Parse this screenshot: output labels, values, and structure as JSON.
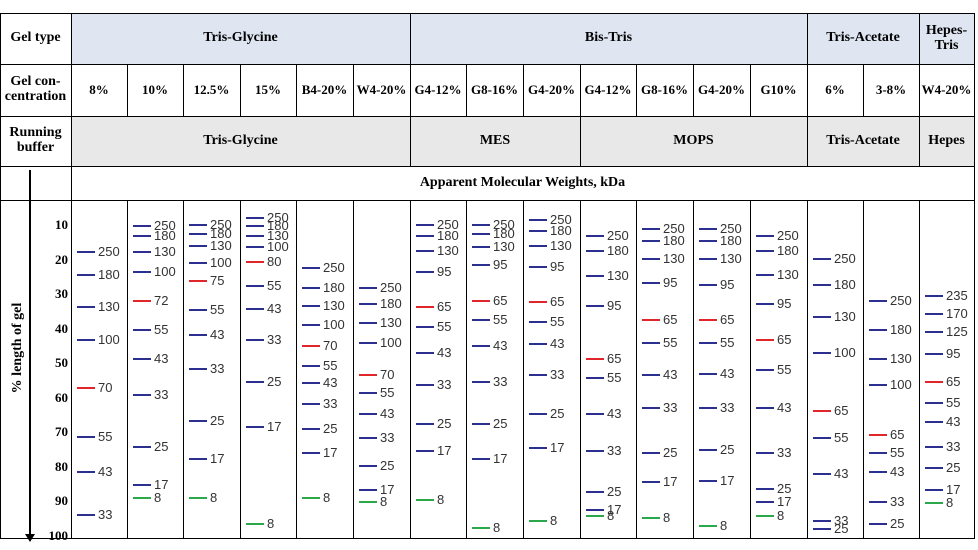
{
  "header": {
    "gel_type_label": "Gel type",
    "gel_concentration_label": "Gel con-\ncentration",
    "running_buffer_label": "Running\nbuffer",
    "y_axis_label": "% length of gel",
    "apparent_mw_label": "Apparent Molecular Weights, kDa"
  },
  "gel_types": [
    "Tris-Glycine",
    "Bis-Tris",
    "Tris-Acetate",
    "Hepes-\nTris"
  ],
  "buffers": [
    "Tris-Glycine",
    "MES",
    "MOPS",
    "Tris-Acetate",
    "Hepes"
  ],
  "y_ticks": [
    "10",
    "20",
    "30",
    "40",
    "50",
    "60",
    "70",
    "80",
    "90",
    "100"
  ],
  "colors": {
    "blue": "#2b2f8f",
    "red": "#e0252b",
    "green": "#2aa84a",
    "header_blue": "#dfe6f2",
    "header_gray": "#e8e8e8"
  },
  "lanes": [
    {
      "concentration": "8%",
      "bands": [
        {
          "v": "250",
          "y": 13,
          "c": "blue"
        },
        {
          "v": "180",
          "y": 20,
          "c": "blue"
        },
        {
          "v": "130",
          "y": 30,
          "c": "blue"
        },
        {
          "v": "100",
          "y": 40,
          "c": "blue"
        },
        {
          "v": "70",
          "y": 55,
          "c": "red"
        },
        {
          "v": "55",
          "y": 70,
          "c": "blue"
        },
        {
          "v": "43",
          "y": 81,
          "c": "blue"
        },
        {
          "v": "33",
          "y": 94,
          "c": "blue"
        }
      ]
    },
    {
      "concentration": "10%",
      "bands": [
        {
          "v": "250",
          "y": 5,
          "c": "blue"
        },
        {
          "v": "180",
          "y": 8,
          "c": "blue"
        },
        {
          "v": "130",
          "y": 13,
          "c": "blue"
        },
        {
          "v": "100",
          "y": 19,
          "c": "blue"
        },
        {
          "v": "72",
          "y": 28,
          "c": "red"
        },
        {
          "v": "55",
          "y": 37,
          "c": "blue"
        },
        {
          "v": "43",
          "y": 46,
          "c": "blue"
        },
        {
          "v": "33",
          "y": 57,
          "c": "blue"
        },
        {
          "v": "25",
          "y": 73,
          "c": "blue"
        },
        {
          "v": "17",
          "y": 85,
          "c": "blue"
        },
        {
          "v": "8",
          "y": 89,
          "c": "green"
        }
      ]
    },
    {
      "concentration": "12.5%",
      "bands": [
        {
          "v": "250",
          "y": 4.5,
          "c": "blue"
        },
        {
          "v": "180",
          "y": 7.5,
          "c": "blue"
        },
        {
          "v": "130",
          "y": 11,
          "c": "blue"
        },
        {
          "v": "100",
          "y": 16.5,
          "c": "blue"
        },
        {
          "v": "75",
          "y": 22,
          "c": "red"
        },
        {
          "v": "55",
          "y": 31,
          "c": "blue"
        },
        {
          "v": "43",
          "y": 38.5,
          "c": "blue"
        },
        {
          "v": "33",
          "y": 49,
          "c": "blue"
        },
        {
          "v": "25",
          "y": 65,
          "c": "blue"
        },
        {
          "v": "17",
          "y": 77,
          "c": "blue"
        },
        {
          "v": "8",
          "y": 89,
          "c": "green"
        }
      ]
    },
    {
      "concentration": "15%",
      "bands": [
        {
          "v": "250",
          "y": 2.5,
          "c": "blue"
        },
        {
          "v": "180",
          "y": 5,
          "c": "blue"
        },
        {
          "v": "130",
          "y": 8,
          "c": "blue"
        },
        {
          "v": "100",
          "y": 11.5,
          "c": "blue"
        },
        {
          "v": "80",
          "y": 16,
          "c": "red"
        },
        {
          "v": "55",
          "y": 23.5,
          "c": "blue"
        },
        {
          "v": "43",
          "y": 30.5,
          "c": "blue"
        },
        {
          "v": "33",
          "y": 40,
          "c": "blue"
        },
        {
          "v": "25",
          "y": 53,
          "c": "blue"
        },
        {
          "v": "17",
          "y": 67,
          "c": "blue"
        },
        {
          "v": "8",
          "y": 97,
          "c": "green"
        }
      ]
    },
    {
      "concentration": "B4-20%",
      "bands": [
        {
          "v": "250",
          "y": 18,
          "c": "blue"
        },
        {
          "v": "180",
          "y": 24,
          "c": "blue"
        },
        {
          "v": "130",
          "y": 29.5,
          "c": "blue"
        },
        {
          "v": "100",
          "y": 35.5,
          "c": "blue"
        },
        {
          "v": "70",
          "y": 42,
          "c": "red"
        },
        {
          "v": "55",
          "y": 48,
          "c": "blue"
        },
        {
          "v": "43",
          "y": 53.5,
          "c": "blue"
        },
        {
          "v": "33",
          "y": 60,
          "c": "blue"
        },
        {
          "v": "25",
          "y": 67.5,
          "c": "blue"
        },
        {
          "v": "17",
          "y": 75,
          "c": "blue"
        },
        {
          "v": "8",
          "y": 89,
          "c": "green"
        }
      ]
    },
    {
      "concentration": "W4-20%",
      "bands": [
        {
          "v": "250",
          "y": 24,
          "c": "blue"
        },
        {
          "v": "180",
          "y": 29,
          "c": "blue"
        },
        {
          "v": "130",
          "y": 35,
          "c": "blue"
        },
        {
          "v": "100",
          "y": 41,
          "c": "blue"
        },
        {
          "v": "70",
          "y": 51,
          "c": "red"
        },
        {
          "v": "55",
          "y": 56.5,
          "c": "blue"
        },
        {
          "v": "43",
          "y": 63,
          "c": "blue"
        },
        {
          "v": "33",
          "y": 70.5,
          "c": "blue"
        },
        {
          "v": "25",
          "y": 79,
          "c": "blue"
        },
        {
          "v": "17",
          "y": 86.5,
          "c": "blue"
        },
        {
          "v": "8",
          "y": 90,
          "c": "green"
        }
      ]
    },
    {
      "concentration": "G4-12%",
      "bands": [
        {
          "v": "250",
          "y": 4.5,
          "c": "blue"
        },
        {
          "v": "180",
          "y": 8,
          "c": "blue"
        },
        {
          "v": "130",
          "y": 12.5,
          "c": "blue"
        },
        {
          "v": "95",
          "y": 19,
          "c": "blue"
        },
        {
          "v": "65",
          "y": 30,
          "c": "red"
        },
        {
          "v": "55",
          "y": 36,
          "c": "blue"
        },
        {
          "v": "43",
          "y": 44,
          "c": "blue"
        },
        {
          "v": "33",
          "y": 54,
          "c": "blue"
        },
        {
          "v": "25",
          "y": 66,
          "c": "blue"
        },
        {
          "v": "17",
          "y": 74.5,
          "c": "blue"
        },
        {
          "v": "8",
          "y": 89.5,
          "c": "green"
        }
      ]
    },
    {
      "concentration": "G8-16%",
      "bands": [
        {
          "v": "250",
          "y": 4.5,
          "c": "blue"
        },
        {
          "v": "180",
          "y": 7.5,
          "c": "blue"
        },
        {
          "v": "130",
          "y": 11.5,
          "c": "blue"
        },
        {
          "v": "95",
          "y": 17,
          "c": "blue"
        },
        {
          "v": "65",
          "y": 28,
          "c": "red"
        },
        {
          "v": "55",
          "y": 34,
          "c": "blue"
        },
        {
          "v": "43",
          "y": 42,
          "c": "blue"
        },
        {
          "v": "33",
          "y": 53,
          "c": "blue"
        },
        {
          "v": "25",
          "y": 66,
          "c": "blue"
        },
        {
          "v": "17",
          "y": 77,
          "c": "blue"
        },
        {
          "v": "8",
          "y": 98,
          "c": "green"
        }
      ]
    },
    {
      "concentration": "G4-20%",
      "bands": [
        {
          "v": "250",
          "y": 3,
          "c": "blue"
        },
        {
          "v": "180",
          "y": 6.5,
          "c": "blue"
        },
        {
          "v": "130",
          "y": 11,
          "c": "blue"
        },
        {
          "v": "95",
          "y": 17.5,
          "c": "blue"
        },
        {
          "v": "65",
          "y": 28.5,
          "c": "red"
        },
        {
          "v": "55",
          "y": 34.5,
          "c": "blue"
        },
        {
          "v": "43",
          "y": 41.5,
          "c": "blue"
        },
        {
          "v": "33",
          "y": 51,
          "c": "blue"
        },
        {
          "v": "25",
          "y": 63,
          "c": "blue"
        },
        {
          "v": "17",
          "y": 73.5,
          "c": "blue"
        },
        {
          "v": "8",
          "y": 96,
          "c": "green"
        }
      ]
    },
    {
      "concentration": "G4-12%",
      "bands": [
        {
          "v": "250",
          "y": 8,
          "c": "blue"
        },
        {
          "v": "180",
          "y": 12.5,
          "c": "blue"
        },
        {
          "v": "130",
          "y": 20.5,
          "c": "blue"
        },
        {
          "v": "95",
          "y": 29.5,
          "c": "blue"
        },
        {
          "v": "65",
          "y": 46,
          "c": "red"
        },
        {
          "v": "55",
          "y": 52,
          "c": "blue"
        },
        {
          "v": "43",
          "y": 63,
          "c": "blue"
        },
        {
          "v": "33",
          "y": 74.5,
          "c": "blue"
        },
        {
          "v": "25",
          "y": 87,
          "c": "blue"
        },
        {
          "v": "17",
          "y": 92.5,
          "c": "blue"
        },
        {
          "v": "8",
          "y": 94.5,
          "c": "green"
        }
      ]
    },
    {
      "concentration": "G8-16%",
      "bands": [
        {
          "v": "250",
          "y": 6,
          "c": "blue"
        },
        {
          "v": "180",
          "y": 9.5,
          "c": "blue"
        },
        {
          "v": "130",
          "y": 15,
          "c": "blue"
        },
        {
          "v": "95",
          "y": 22.5,
          "c": "blue"
        },
        {
          "v": "65",
          "y": 34,
          "c": "red"
        },
        {
          "v": "55",
          "y": 41,
          "c": "blue"
        },
        {
          "v": "43",
          "y": 51,
          "c": "blue"
        },
        {
          "v": "33",
          "y": 61,
          "c": "blue"
        },
        {
          "v": "25",
          "y": 75,
          "c": "blue"
        },
        {
          "v": "17",
          "y": 84,
          "c": "blue"
        },
        {
          "v": "8",
          "y": 95,
          "c": "green"
        }
      ]
    },
    {
      "concentration": "G4-20%",
      "bands": [
        {
          "v": "250",
          "y": 6,
          "c": "blue"
        },
        {
          "v": "180",
          "y": 9.5,
          "c": "blue"
        },
        {
          "v": "130",
          "y": 15,
          "c": "blue"
        },
        {
          "v": "95",
          "y": 23,
          "c": "blue"
        },
        {
          "v": "65",
          "y": 34,
          "c": "red"
        },
        {
          "v": "55",
          "y": 41,
          "c": "blue"
        },
        {
          "v": "43",
          "y": 50.5,
          "c": "blue"
        },
        {
          "v": "33",
          "y": 61,
          "c": "blue"
        },
        {
          "v": "25",
          "y": 74,
          "c": "blue"
        },
        {
          "v": "17",
          "y": 83.5,
          "c": "blue"
        },
        {
          "v": "8",
          "y": 97.5,
          "c": "green"
        }
      ]
    },
    {
      "concentration": "G10%",
      "bands": [
        {
          "v": "250",
          "y": 8,
          "c": "blue"
        },
        {
          "v": "180",
          "y": 12.5,
          "c": "blue"
        },
        {
          "v": "130",
          "y": 20,
          "c": "blue"
        },
        {
          "v": "95",
          "y": 29,
          "c": "blue"
        },
        {
          "v": "65",
          "y": 40,
          "c": "red"
        },
        {
          "v": "55",
          "y": 49.5,
          "c": "blue"
        },
        {
          "v": "43",
          "y": 61,
          "c": "blue"
        },
        {
          "v": "33",
          "y": 75,
          "c": "blue"
        },
        {
          "v": "25",
          "y": 86,
          "c": "blue"
        },
        {
          "v": "17",
          "y": 90,
          "c": "blue"
        },
        {
          "v": "8",
          "y": 94.5,
          "c": "green"
        }
      ]
    },
    {
      "concentration": "6%",
      "bands": [
        {
          "v": "250",
          "y": 15,
          "c": "blue"
        },
        {
          "v": "180",
          "y": 23,
          "c": "blue"
        },
        {
          "v": "130",
          "y": 33,
          "c": "blue"
        },
        {
          "v": "100",
          "y": 44,
          "c": "blue"
        },
        {
          "v": "65",
          "y": 62,
          "c": "red"
        },
        {
          "v": "55",
          "y": 70.5,
          "c": "blue"
        },
        {
          "v": "43",
          "y": 81.5,
          "c": "blue"
        },
        {
          "v": "33",
          "y": 96,
          "c": "blue"
        },
        {
          "v": "25",
          "y": 98.5,
          "c": "blue"
        }
      ]
    },
    {
      "concentration": "3-8%",
      "bands": [
        {
          "v": "250",
          "y": 28,
          "c": "blue"
        },
        {
          "v": "180",
          "y": 37,
          "c": "blue"
        },
        {
          "v": "130",
          "y": 46,
          "c": "blue"
        },
        {
          "v": "100",
          "y": 54,
          "c": "blue"
        },
        {
          "v": "65",
          "y": 69.5,
          "c": "red"
        },
        {
          "v": "55",
          "y": 75,
          "c": "blue"
        },
        {
          "v": "43",
          "y": 81,
          "c": "blue"
        },
        {
          "v": "33",
          "y": 90,
          "c": "blue"
        },
        {
          "v": "25",
          "y": 97,
          "c": "blue"
        }
      ]
    },
    {
      "concentration": "W4-20%",
      "bands": [
        {
          "v": "235",
          "y": 26.5,
          "c": "blue"
        },
        {
          "v": "170",
          "y": 32,
          "c": "blue"
        },
        {
          "v": "125",
          "y": 37.5,
          "c": "blue"
        },
        {
          "v": "95",
          "y": 44.5,
          "c": "blue"
        },
        {
          "v": "65",
          "y": 53,
          "c": "red"
        },
        {
          "v": "55",
          "y": 59.5,
          "c": "blue"
        },
        {
          "v": "43",
          "y": 65.5,
          "c": "blue"
        },
        {
          "v": "33",
          "y": 73,
          "c": "blue"
        },
        {
          "v": "25",
          "y": 79.5,
          "c": "blue"
        },
        {
          "v": "17",
          "y": 86.5,
          "c": "blue"
        },
        {
          "v": "8",
          "y": 90.5,
          "c": "green"
        }
      ]
    }
  ]
}
